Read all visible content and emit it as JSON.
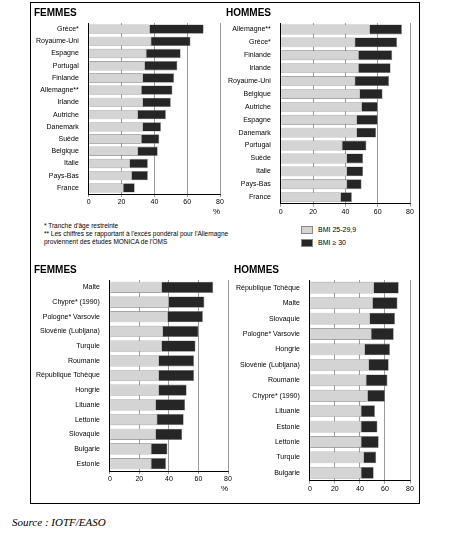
{
  "chart_data": [
    {
      "type": "bar",
      "orientation": "horizontal",
      "stacked": true,
      "title": "FEMMES",
      "categories": [
        "Grèce*",
        "Royaume-Uni",
        "Espagne",
        "Portugal",
        "Finlande",
        "Allemagne**",
        "Irlande",
        "Autriche",
        "Danemark",
        "Suède",
        "Belgique",
        "Italie",
        "Pays-Bas",
        "France"
      ],
      "series": [
        {
          "name": "BMI 25-29,9",
          "color": "#d4d4d4",
          "values": [
            37,
            38,
            35,
            34,
            33,
            32,
            33,
            30,
            33,
            32,
            30,
            25,
            26,
            21
          ]
        },
        {
          "name": "BMI ≥ 30",
          "color": "#262626",
          "values": [
            33,
            24,
            21,
            20,
            19,
            19,
            17,
            17,
            11,
            11,
            12,
            11,
            10,
            7
          ]
        }
      ],
      "xlim": [
        0,
        80
      ],
      "xticks": [
        0,
        20,
        40,
        60,
        80
      ],
      "x_label": "%",
      "grid": true
    },
    {
      "type": "bar",
      "orientation": "horizontal",
      "stacked": true,
      "title": "HOMMES",
      "legend": "bottom",
      "categories": [
        "Allemagne**",
        "Grèce*",
        "Finlande",
        "Irlande",
        "Royaume-Uni",
        "Belgique",
        "Autriche",
        "Espagne",
        "Danemark",
        "Portugal",
        "Suède",
        "Italie",
        "Pays-Bas",
        "France"
      ],
      "series": [
        {
          "name": "BMI 25-29,9",
          "color": "#d4d4d4",
          "values": [
            55,
            46,
            48,
            48,
            46,
            49,
            50,
            47,
            47,
            38,
            41,
            41,
            41,
            37
          ]
        },
        {
          "name": "BMI ≥ 30",
          "color": "#262626",
          "values": [
            20,
            26,
            21,
            20,
            21,
            14,
            10,
            13,
            12,
            15,
            10,
            10,
            9,
            7
          ]
        }
      ],
      "xlim": [
        0,
        80
      ],
      "xticks": [
        0,
        20,
        40,
        60,
        80
      ],
      "grid": true
    },
    {
      "type": "bar",
      "orientation": "horizontal",
      "stacked": true,
      "title": "FEMMES",
      "categories": [
        "Malte",
        "Chypre* (1990)",
        "Pologne* Varsovie",
        "Slovénie (Lubljana)",
        "Turquie",
        "Roumanie",
        "République Tchèque",
        "Hongrie",
        "Lituanie",
        "Lettonie",
        "Slovaquie",
        "Bulgarie",
        "Estonie"
      ],
      "series": [
        {
          "name": "BMI 25-29,9",
          "color": "#d4d4d4",
          "values": [
            35,
            40,
            39,
            36,
            35,
            33,
            33,
            33,
            31,
            32,
            31,
            28,
            28
          ]
        },
        {
          "name": "BMI ≥ 30",
          "color": "#262626",
          "values": [
            35,
            24,
            24,
            24,
            23,
            24,
            24,
            19,
            20,
            18,
            18,
            11,
            10
          ]
        }
      ],
      "xlim": [
        0,
        80
      ],
      "xticks": [
        0,
        20,
        40,
        60,
        80
      ],
      "x_label": "%",
      "grid": true
    },
    {
      "type": "bar",
      "orientation": "horizontal",
      "stacked": true,
      "title": "HOMMES",
      "categories": [
        "République Tchèque",
        "Malte",
        "Slovaquie",
        "Pologne* Varsovie",
        "Hongrie",
        "Slovénie (Lubljana)",
        "Roumanie",
        "Chypre* (1990)",
        "Lituanie",
        "Estonie",
        "Lettonie",
        "Turquie",
        "Bulgarie"
      ],
      "series": [
        {
          "name": "BMI 25-29,9",
          "color": "#d4d4d4",
          "values": [
            51,
            50,
            48,
            49,
            44,
            47,
            45,
            46,
            41,
            41,
            41,
            43,
            41
          ]
        },
        {
          "name": "BMI ≥ 30",
          "color": "#262626",
          "values": [
            20,
            20,
            20,
            18,
            20,
            16,
            17,
            14,
            11,
            13,
            14,
            10,
            10
          ]
        }
      ],
      "xlim": [
        0,
        80
      ],
      "xticks": [
        0,
        20,
        40,
        60,
        80
      ],
      "grid": true
    }
  ],
  "footnotes": [
    "* Tranche d'âge restreinte",
    "** Les chiffres se rapportant à l'excès pondéral pour l'Allemagne proviennent des études MONICA de l'OMS"
  ],
  "source": "Source : IOTF/EASO"
}
